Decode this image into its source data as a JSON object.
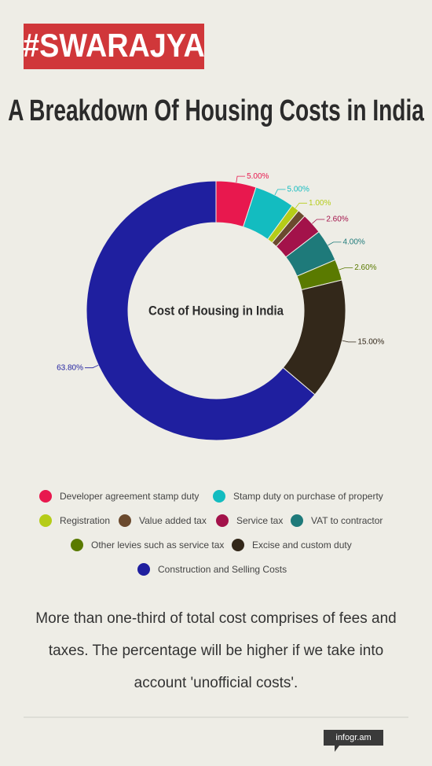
{
  "brand": "#SWARAJYA",
  "chart_data": {
    "type": "donut",
    "title": "A Breakdown Of Housing Costs in India",
    "center_label": "Cost of Housing in India",
    "categories": [
      "Developer agreement stamp duty",
      "Stamp duty on purchase of property",
      "Registration",
      "Value added tax",
      "Service tax",
      "VAT to contractor",
      "Other levies such as service tax",
      "Excise and custom duty",
      "Construction and Selling Costs"
    ],
    "values": [
      5,
      5,
      1,
      1,
      2.6,
      4,
      2.6,
      15,
      63.8
    ],
    "value_labels": [
      "5.00%",
      "5.00%",
      "1.00%",
      null,
      "2.60%",
      "4.00%",
      "2.60%",
      "15.00%",
      "63.80%"
    ],
    "colors": [
      "#e8184e",
      "#13bcc0",
      "#b5cc18",
      "#6b4a2e",
      "#a3124a",
      "#1e7a7a",
      "#5a7a00",
      "#33281a",
      "#1f1f9f"
    ]
  },
  "note": "More than one-third of total cost comprises of fees and taxes. The percentage will be higher if we take into account 'unofficial costs'.",
  "footer": "infogr.am"
}
